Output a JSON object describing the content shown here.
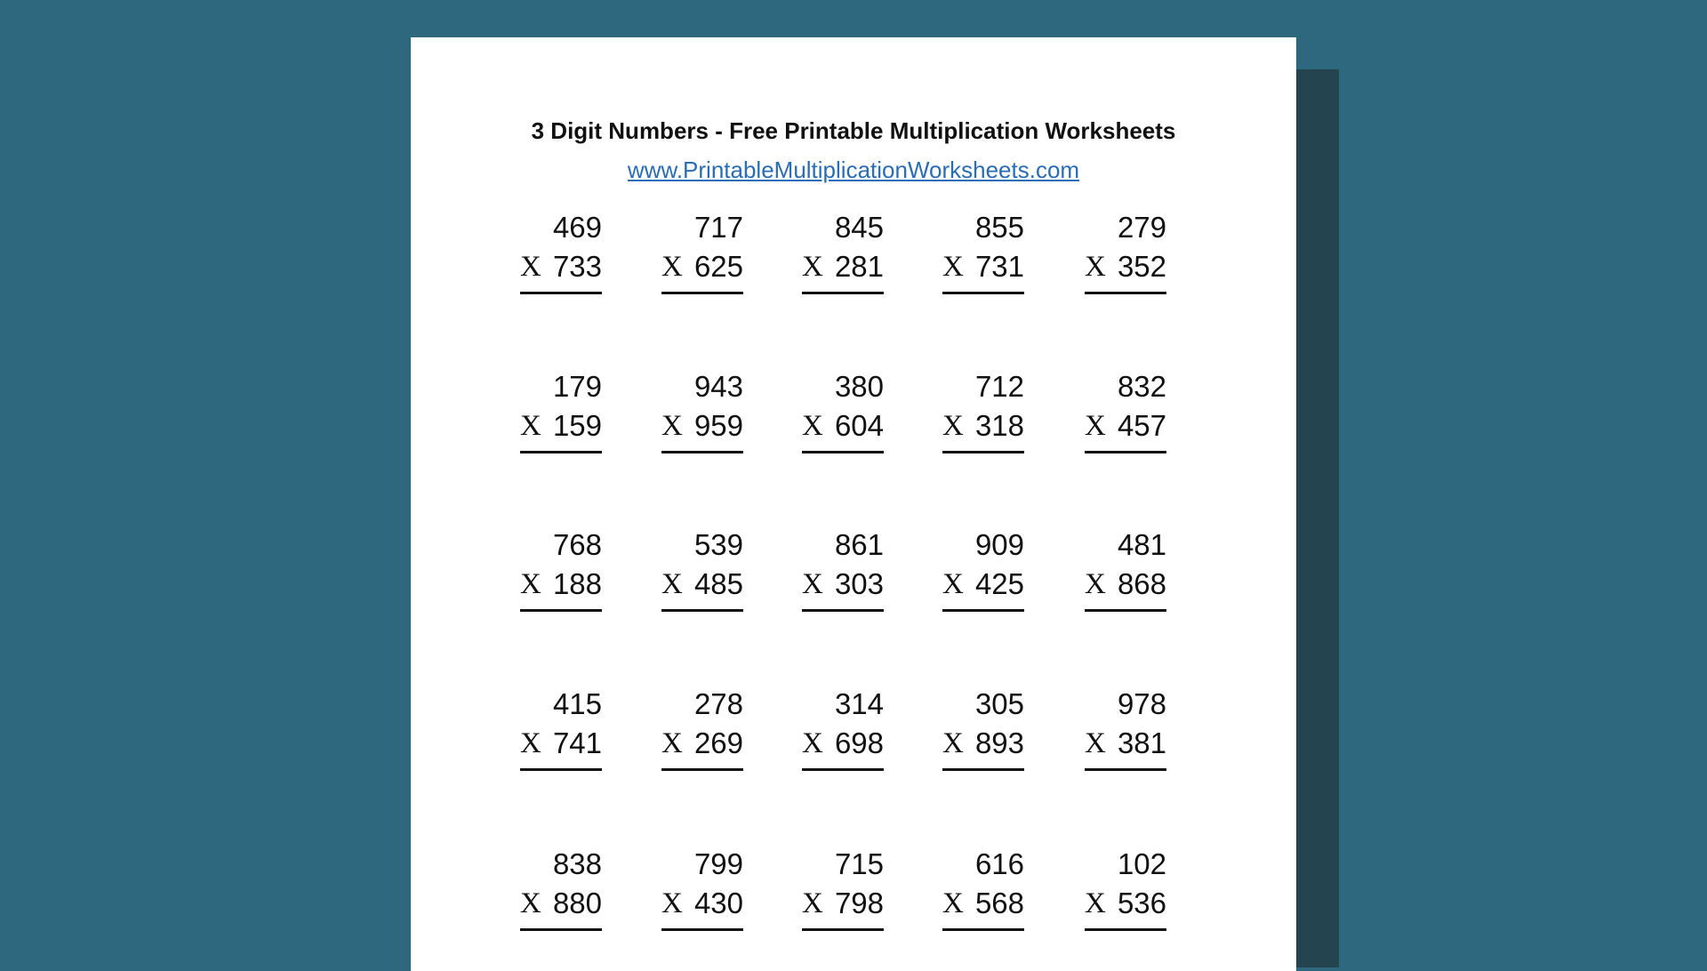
{
  "worksheet": {
    "title": "3 Digit Numbers - Free Printable Multiplication Worksheets",
    "url": "www.PrintableMultiplicationWorksheets.com",
    "operator": "X",
    "problems": [
      [
        {
          "a": "469",
          "b": "733"
        },
        {
          "a": "717",
          "b": "625"
        },
        {
          "a": "845",
          "b": "281"
        },
        {
          "a": "855",
          "b": "731"
        },
        {
          "a": "279",
          "b": "352"
        }
      ],
      [
        {
          "a": "179",
          "b": "159"
        },
        {
          "a": "943",
          "b": "959"
        },
        {
          "a": "380",
          "b": "604"
        },
        {
          "a": "712",
          "b": "318"
        },
        {
          "a": "832",
          "b": "457"
        }
      ],
      [
        {
          "a": "768",
          "b": "188"
        },
        {
          "a": "539",
          "b": "485"
        },
        {
          "a": "861",
          "b": "303"
        },
        {
          "a": "909",
          "b": "425"
        },
        {
          "a": "481",
          "b": "868"
        }
      ],
      [
        {
          "a": "415",
          "b": "741"
        },
        {
          "a": "278",
          "b": "269"
        },
        {
          "a": "314",
          "b": "698"
        },
        {
          "a": "305",
          "b": "893"
        },
        {
          "a": "978",
          "b": "381"
        }
      ],
      [
        {
          "a": "838",
          "b": "880"
        },
        {
          "a": "799",
          "b": "430"
        },
        {
          "a": "715",
          "b": "798"
        },
        {
          "a": "616",
          "b": "568"
        },
        {
          "a": "102",
          "b": "536"
        }
      ]
    ]
  },
  "colors": {
    "background": "#2e687e",
    "shadow": "#24444f",
    "link": "#2a6db5"
  }
}
